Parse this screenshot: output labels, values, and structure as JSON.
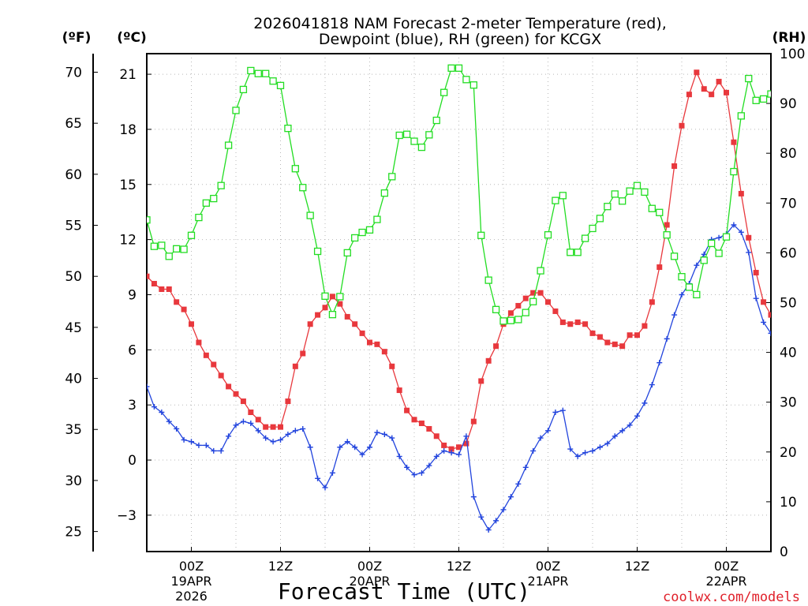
{
  "chart_data": {
    "type": "line",
    "title_lines": [
      "2026041818 NAM Forecast 2-meter Temperature (red),",
      "Dewpoint (blue), RH (green) for KCGX"
    ],
    "units": {
      "fahrenheit": "(ºF)",
      "celsius": "(ºC)",
      "rh": "(RH)"
    },
    "xlabel": "Forecast Time (UTC)",
    "credit": "coolwx.com/models",
    "x_unit": "hours after 2026-04-18 18Z",
    "xlim": [
      0,
      84
    ],
    "ylim_c": [
      -4.98,
      22.12
    ],
    "ylim_rh": [
      0,
      100
    ],
    "celsius_ticks": [
      "21",
      "18",
      "15",
      "12",
      "9",
      "6",
      "3",
      "0",
      "−3"
    ],
    "fahrenheit_ticks": [
      "70",
      "65",
      "60",
      "55",
      "50",
      "45",
      "40",
      "35",
      "30",
      "25"
    ],
    "rh_ticks": [
      "100",
      "90",
      "80",
      "70",
      "60",
      "50",
      "40",
      "30",
      "20",
      "10",
      "0"
    ],
    "x_ticks": [
      {
        "hour": 6,
        "time": "00Z",
        "date": "19APR",
        "year": "2026"
      },
      {
        "hour": 18,
        "time": "12Z",
        "date": "",
        "year": ""
      },
      {
        "hour": 30,
        "time": "00Z",
        "date": "20APR",
        "year": ""
      },
      {
        "hour": 42,
        "time": "12Z",
        "date": "",
        "year": ""
      },
      {
        "hour": 54,
        "time": "00Z",
        "date": "21APR",
        "year": ""
      },
      {
        "hour": 66,
        "time": "12Z",
        "date": "",
        "year": ""
      },
      {
        "hour": 78,
        "time": "00Z",
        "date": "22APR",
        "year": ""
      }
    ],
    "series": [
      {
        "name": "Temperature",
        "unit": "C",
        "color": "#e8383d",
        "marker": "filled-square",
        "values": [
          [
            0,
            10.0
          ],
          [
            1,
            9.6
          ],
          [
            2,
            9.3
          ],
          [
            3,
            9.3
          ],
          [
            4,
            8.6
          ],
          [
            5,
            8.2
          ],
          [
            6,
            7.4
          ],
          [
            7,
            6.4
          ],
          [
            8,
            5.7
          ],
          [
            9,
            5.2
          ],
          [
            10,
            4.6
          ],
          [
            11,
            4.0
          ],
          [
            12,
            3.6
          ],
          [
            13,
            3.2
          ],
          [
            14,
            2.6
          ],
          [
            15,
            2.2
          ],
          [
            16,
            1.8
          ],
          [
            17,
            1.8
          ],
          [
            18,
            1.8
          ],
          [
            19,
            3.2
          ],
          [
            20,
            5.1
          ],
          [
            21,
            5.8
          ],
          [
            22,
            7.4
          ],
          [
            23,
            7.9
          ],
          [
            24,
            8.3
          ],
          [
            25,
            8.9
          ],
          [
            26,
            8.5
          ],
          [
            27,
            7.8
          ],
          [
            28,
            7.4
          ],
          [
            29,
            6.9
          ],
          [
            30,
            6.4
          ],
          [
            31,
            6.3
          ],
          [
            32,
            5.9
          ],
          [
            33,
            5.1
          ],
          [
            34,
            3.8
          ],
          [
            35,
            2.7
          ],
          [
            36,
            2.2
          ],
          [
            37,
            2.0
          ],
          [
            38,
            1.7
          ],
          [
            39,
            1.3
          ],
          [
            40,
            0.8
          ],
          [
            41,
            0.6
          ],
          [
            42,
            0.7
          ],
          [
            43,
            0.9
          ],
          [
            44,
            2.1
          ],
          [
            45,
            4.3
          ],
          [
            46,
            5.4
          ],
          [
            47,
            6.2
          ],
          [
            48,
            7.4
          ],
          [
            49,
            8.0
          ],
          [
            50,
            8.4
          ],
          [
            51,
            8.8
          ],
          [
            52,
            9.1
          ],
          [
            53,
            9.1
          ],
          [
            54,
            8.6
          ],
          [
            55,
            8.1
          ],
          [
            56,
            7.5
          ],
          [
            57,
            7.4
          ],
          [
            58,
            7.5
          ],
          [
            59,
            7.4
          ],
          [
            60,
            6.9
          ],
          [
            61,
            6.7
          ],
          [
            62,
            6.4
          ],
          [
            63,
            6.3
          ],
          [
            64,
            6.2
          ],
          [
            65,
            6.8
          ],
          [
            66,
            6.8
          ],
          [
            67,
            7.3
          ],
          [
            68,
            8.6
          ],
          [
            69,
            10.5
          ],
          [
            70,
            12.8
          ],
          [
            71,
            16.0
          ],
          [
            72,
            18.2
          ],
          [
            73,
            19.9
          ],
          [
            74,
            21.1
          ],
          [
            75,
            20.2
          ],
          [
            76,
            19.9
          ],
          [
            77,
            20.6
          ],
          [
            78,
            20.0
          ],
          [
            79,
            17.3
          ],
          [
            80,
            14.5
          ],
          [
            81,
            12.1
          ],
          [
            82,
            10.2
          ],
          [
            83,
            8.6
          ],
          [
            84,
            7.9
          ]
        ]
      },
      {
        "name": "Dewpoint",
        "unit": "C",
        "color": "#2244dd",
        "marker": "plus",
        "values": [
          [
            0,
            4.0
          ],
          [
            1,
            2.9
          ],
          [
            2,
            2.6
          ],
          [
            3,
            2.1
          ],
          [
            4,
            1.7
          ],
          [
            5,
            1.1
          ],
          [
            6,
            1.0
          ],
          [
            7,
            0.8
          ],
          [
            8,
            0.8
          ],
          [
            9,
            0.5
          ],
          [
            10,
            0.5
          ],
          [
            11,
            1.3
          ],
          [
            12,
            1.9
          ],
          [
            13,
            2.1
          ],
          [
            14,
            2.0
          ],
          [
            15,
            1.6
          ],
          [
            16,
            1.2
          ],
          [
            17,
            1.0
          ],
          [
            18,
            1.1
          ],
          [
            19,
            1.4
          ],
          [
            20,
            1.6
          ],
          [
            21,
            1.7
          ],
          [
            22,
            0.7
          ],
          [
            23,
            -1.0
          ],
          [
            24,
            -1.5
          ],
          [
            25,
            -0.7
          ],
          [
            26,
            0.7
          ],
          [
            27,
            1.0
          ],
          [
            28,
            0.7
          ],
          [
            29,
            0.3
          ],
          [
            30,
            0.7
          ],
          [
            31,
            1.5
          ],
          [
            32,
            1.4
          ],
          [
            33,
            1.2
          ],
          [
            34,
            0.2
          ],
          [
            35,
            -0.4
          ],
          [
            36,
            -0.8
          ],
          [
            37,
            -0.7
          ],
          [
            38,
            -0.3
          ],
          [
            39,
            0.2
          ],
          [
            40,
            0.5
          ],
          [
            41,
            0.4
          ],
          [
            42,
            0.3
          ],
          [
            43,
            1.3
          ],
          [
            44,
            -2.0
          ],
          [
            45,
            -3.1
          ],
          [
            46,
            -3.8
          ],
          [
            47,
            -3.3
          ],
          [
            48,
            -2.7
          ],
          [
            49,
            -2.0
          ],
          [
            50,
            -1.3
          ],
          [
            51,
            -0.4
          ],
          [
            52,
            0.5
          ],
          [
            53,
            1.2
          ],
          [
            54,
            1.6
          ],
          [
            55,
            2.6
          ],
          [
            56,
            2.7
          ],
          [
            57,
            0.6
          ],
          [
            58,
            0.2
          ],
          [
            59,
            0.4
          ],
          [
            60,
            0.5
          ],
          [
            61,
            0.7
          ],
          [
            62,
            0.9
          ],
          [
            63,
            1.3
          ],
          [
            64,
            1.6
          ],
          [
            65,
            1.9
          ],
          [
            66,
            2.4
          ],
          [
            67,
            3.1
          ],
          [
            68,
            4.1
          ],
          [
            69,
            5.3
          ],
          [
            70,
            6.6
          ],
          [
            71,
            7.9
          ],
          [
            72,
            9.0
          ],
          [
            73,
            9.6
          ],
          [
            74,
            10.6
          ],
          [
            75,
            11.2
          ],
          [
            76,
            12.0
          ],
          [
            77,
            12.1
          ],
          [
            78,
            12.3
          ],
          [
            79,
            12.8
          ],
          [
            80,
            12.4
          ],
          [
            81,
            11.3
          ],
          [
            82,
            8.8
          ],
          [
            83,
            7.5
          ],
          [
            84,
            6.9
          ]
        ]
      },
      {
        "name": "RH",
        "unit": "%",
        "color": "#22dd22",
        "marker": "open-square",
        "values": [
          [
            0,
            66.6
          ],
          [
            1,
            61.3
          ],
          [
            2,
            61.5
          ],
          [
            3,
            59.3
          ],
          [
            4,
            60.8
          ],
          [
            5,
            60.7
          ],
          [
            6,
            63.5
          ],
          [
            7,
            67.1
          ],
          [
            8,
            70.0
          ],
          [
            9,
            70.9
          ],
          [
            10,
            73.5
          ],
          [
            11,
            81.6
          ],
          [
            12,
            88.6
          ],
          [
            13,
            92.8
          ],
          [
            14,
            96.6
          ],
          [
            15,
            96.0
          ],
          [
            16,
            96.0
          ],
          [
            17,
            94.5
          ],
          [
            18,
            93.6
          ],
          [
            19,
            85.0
          ],
          [
            20,
            76.9
          ],
          [
            21,
            73.1
          ],
          [
            22,
            67.5
          ],
          [
            23,
            60.3
          ],
          [
            24,
            51.3
          ],
          [
            25,
            47.6
          ],
          [
            26,
            51.2
          ],
          [
            27,
            60.0
          ],
          [
            28,
            63.0
          ],
          [
            29,
            64.1
          ],
          [
            30,
            64.6
          ],
          [
            31,
            66.7
          ],
          [
            32,
            72.0
          ],
          [
            33,
            75.3
          ],
          [
            34,
            83.6
          ],
          [
            35,
            83.8
          ],
          [
            36,
            82.4
          ],
          [
            37,
            81.2
          ],
          [
            38,
            83.7
          ],
          [
            39,
            86.6
          ],
          [
            40,
            92.2
          ],
          [
            41,
            97.1
          ],
          [
            42,
            97.1
          ],
          [
            43,
            94.8
          ],
          [
            44,
            93.7
          ],
          [
            45,
            63.5
          ],
          [
            46,
            54.5
          ],
          [
            47,
            48.6
          ],
          [
            48,
            46.3
          ],
          [
            49,
            46.4
          ],
          [
            50,
            46.6
          ],
          [
            51,
            48.0
          ],
          [
            52,
            50.2
          ],
          [
            53,
            56.4
          ],
          [
            54,
            63.6
          ],
          [
            55,
            70.5
          ],
          [
            56,
            71.5
          ],
          [
            57,
            60.1
          ],
          [
            58,
            60.1
          ],
          [
            59,
            62.9
          ],
          [
            60,
            64.9
          ],
          [
            61,
            66.9
          ],
          [
            62,
            69.3
          ],
          [
            63,
            71.8
          ],
          [
            64,
            70.4
          ],
          [
            65,
            72.4
          ],
          [
            66,
            73.5
          ],
          [
            67,
            72.2
          ],
          [
            68,
            68.9
          ],
          [
            69,
            68.1
          ],
          [
            70,
            63.6
          ],
          [
            71,
            59.3
          ],
          [
            72,
            55.2
          ],
          [
            73,
            53.1
          ],
          [
            74,
            51.6
          ],
          [
            75,
            58.5
          ],
          [
            76,
            61.9
          ],
          [
            77,
            59.9
          ],
          [
            78,
            63.2
          ],
          [
            79,
            76.3
          ],
          [
            80,
            87.5
          ],
          [
            81,
            95.0
          ],
          [
            82,
            90.6
          ],
          [
            83,
            90.9
          ],
          [
            84,
            91.9
          ]
        ]
      }
    ]
  }
}
